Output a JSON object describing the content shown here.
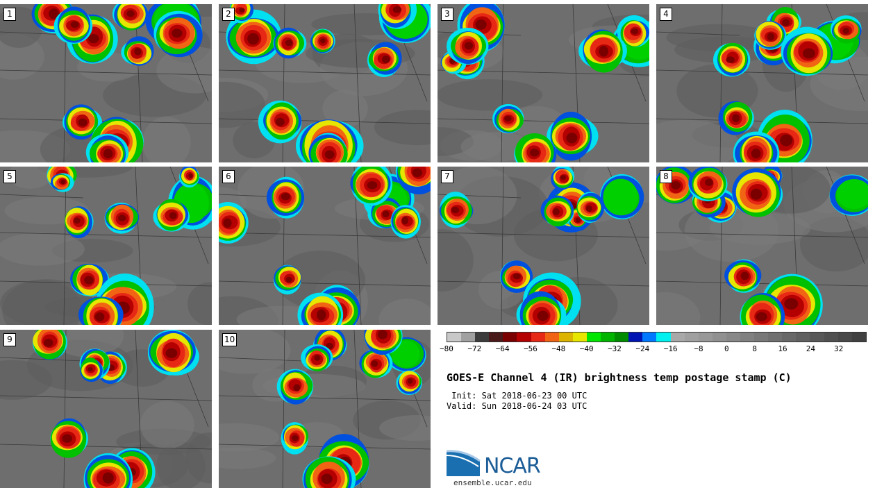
{
  "panels": [
    {
      "label": "1"
    },
    {
      "label": "2"
    },
    {
      "label": "3"
    },
    {
      "label": "4"
    },
    {
      "label": "5"
    },
    {
      "label": "6"
    },
    {
      "label": "7"
    },
    {
      "label": "8"
    },
    {
      "label": "9"
    },
    {
      "label": "10"
    }
  ],
  "colorbar": {
    "colors": [
      "#c8c8c8",
      "#a0a0a0",
      "#3c3c3c",
      "#4a1a1a",
      "#7a0000",
      "#b40000",
      "#e62814",
      "#f06414",
      "#dcb400",
      "#e6e600",
      "#00e600",
      "#00b400",
      "#008c00",
      "#0014b4",
      "#0078ff",
      "#00f0f0",
      "#a8a8a8",
      "#a0a0a0",
      "#989898",
      "#909090",
      "#888888",
      "#808080",
      "#787878",
      "#707070",
      "#686868",
      "#606060",
      "#585858",
      "#505050",
      "#484848",
      "#404040"
    ],
    "ticks": [
      "−80",
      "−72",
      "−64",
      "−56",
      "−48",
      "−40",
      "−32",
      "−24",
      "−16",
      "−8",
      "0",
      "8",
      "16",
      "24",
      "32"
    ]
  },
  "title": "GOES-E Channel 4 (IR) brightness temp postage stamp (C)",
  "init": " Init: Sat 2018-06-23 00 UTC",
  "valid": "Valid: Sun 2018-06-24 03 UTC",
  "logo": {
    "text": "NCAR",
    "site": "ensemble.ucar.edu"
  }
}
